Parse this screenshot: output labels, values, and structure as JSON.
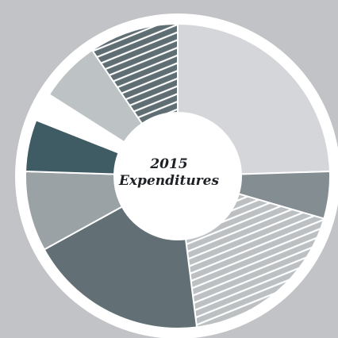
{
  "chart_data": {
    "type": "pie",
    "title_line1": "2015",
    "title_line2": "Expenditures",
    "data_labels_shown": false,
    "legend": "none",
    "slices": [
      {
        "value": 24.5,
        "color": "#d4d6d9",
        "pattern": "solid"
      },
      {
        "value": 5.0,
        "color": "#838d92",
        "pattern": "solid"
      },
      {
        "value": 18.5,
        "color": "#bcc0c3",
        "pattern": "hatched"
      },
      {
        "value": 19.0,
        "color": "#627076",
        "pattern": "solid"
      },
      {
        "value": 8.5,
        "color": "#9aa2a6",
        "pattern": "solid"
      },
      {
        "value": 5.5,
        "color": "#3f5b63",
        "pattern": "solid"
      },
      {
        "value": 3.0,
        "color": "#ffffff",
        "pattern": "solid"
      },
      {
        "value": 6.5,
        "color": "#bdc2c5",
        "pattern": "solid"
      },
      {
        "value": 9.5,
        "color": "#5f6e73",
        "pattern": "hatched"
      }
    ],
    "colors": {
      "background": "#c1c3c6",
      "ring": "#ffffff",
      "hatch_line": "#ffffff"
    }
  }
}
